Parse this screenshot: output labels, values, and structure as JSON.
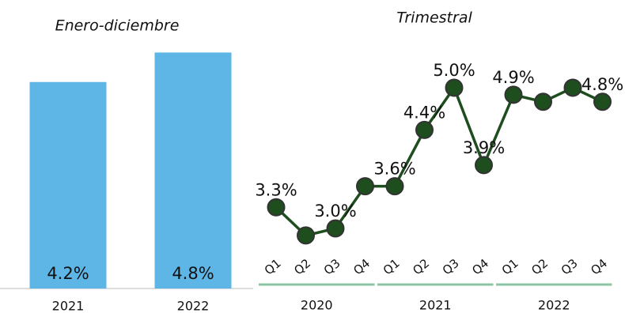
{
  "chart_data": [
    {
      "type": "bar",
      "title": "Enero-diciembre",
      "categories": [
        "2021",
        "2022"
      ],
      "values": [
        4.2,
        4.8
      ],
      "value_labels": [
        "4.2%",
        "4.8%"
      ],
      "color": "#5db6e6"
    },
    {
      "type": "line",
      "title": "Trimestral",
      "categories": [
        "Q1",
        "Q2",
        "Q3",
        "Q4",
        "Q1",
        "Q2",
        "Q3",
        "Q4",
        "Q1",
        "Q2",
        "Q3",
        "Q4"
      ],
      "groups": [
        "2020",
        "2021",
        "2022"
      ],
      "values": [
        3.3,
        2.9,
        3.0,
        3.6,
        3.6,
        4.4,
        5.0,
        3.9,
        4.9,
        4.8,
        5.0,
        4.8
      ],
      "value_labels": [
        "3.3%",
        null,
        "3.0%",
        null,
        "3.6%",
        "4.4%",
        "5.0%",
        "3.9%",
        "4.9%",
        null,
        null,
        "4.8%"
      ],
      "color": "#1e4d1e",
      "group_line_color": "#8cc4a4"
    }
  ]
}
